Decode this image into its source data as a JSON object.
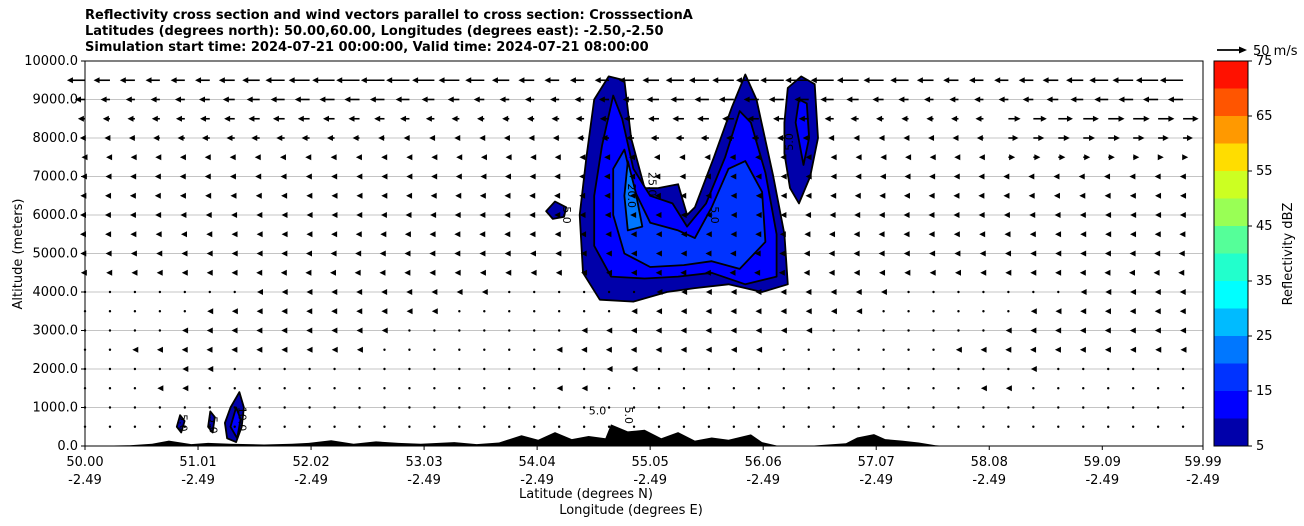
{
  "chart_data": {
    "type": "heatmap",
    "title_lines": [
      "Reflectivity cross section and wind vectors parallel to cross section: CrosssectionA",
      "Latitudes (degrees north): 50.00,60.00, Longitudes (degrees east): -2.50,-2.50",
      "Simulation start time: 2024-07-21 00:00:00, Valid time: 2024-07-21 08:00:00"
    ],
    "ylabel": "Altitude (meters)",
    "xlabel": "Latitude (degrees N)",
    "xlabel2": "Longitude (degrees E)",
    "xlim": [
      50.0,
      59.99
    ],
    "ylim": [
      0,
      10000
    ],
    "x_ticks": [
      {
        "lat": "50.00",
        "lon": "-2.49",
        "value": 50.0
      },
      {
        "lat": "51.01",
        "lon": "-2.49",
        "value": 51.01
      },
      {
        "lat": "52.02",
        "lon": "-2.49",
        "value": 52.02
      },
      {
        "lat": "53.03",
        "lon": "-2.49",
        "value": 53.03
      },
      {
        "lat": "54.04",
        "lon": "-2.49",
        "value": 54.04
      },
      {
        "lat": "55.05",
        "lon": "-2.49",
        "value": 55.05
      },
      {
        "lat": "56.06",
        "lon": "-2.49",
        "value": 56.06
      },
      {
        "lat": "57.07",
        "lon": "-2.49",
        "value": 57.07
      },
      {
        "lat": "58.08",
        "lon": "-2.49",
        "value": 58.08
      },
      {
        "lat": "59.09",
        "lon": "-2.49",
        "value": 59.09
      },
      {
        "lat": "59.99",
        "lon": "-2.49",
        "value": 59.99
      }
    ],
    "y_ticks": [
      {
        "label": "0.0",
        "value": 0
      },
      {
        "label": "1000.0",
        "value": 1000
      },
      {
        "label": "2000.0",
        "value": 2000
      },
      {
        "label": "3000.0",
        "value": 3000
      },
      {
        "label": "4000.0",
        "value": 4000
      },
      {
        "label": "5000.0",
        "value": 5000
      },
      {
        "label": "6000.0",
        "value": 6000
      },
      {
        "label": "7000.0",
        "value": 7000
      },
      {
        "label": "8000.0",
        "value": 8000
      },
      {
        "label": "9000.0",
        "value": 9000
      },
      {
        "label": "10000.0",
        "value": 10000
      }
    ],
    "grid": "horizontal",
    "quiver_key": {
      "label": "50 m/s",
      "speed": 50
    },
    "colorbar": {
      "label": "Reflectivity dBZ",
      "levels": [
        5,
        10,
        15,
        20,
        25,
        30,
        35,
        40,
        45,
        50,
        55,
        60,
        65,
        70,
        75
      ],
      "colors": [
        "#0000aa",
        "#0000ff",
        "#0033ff",
        "#0077ff",
        "#00bbff",
        "#00ffff",
        "#22ffcc",
        "#55ff99",
        "#99ff55",
        "#ccff22",
        "#ffdd00",
        "#ff9900",
        "#ff5500",
        "#ff1100",
        "#aa0000"
      ],
      "tick_labels": [
        {
          "label": "5",
          "value": 5
        },
        {
          "label": "15",
          "value": 15
        },
        {
          "label": "25",
          "value": 25
        },
        {
          "label": "35",
          "value": 35
        },
        {
          "label": "45",
          "value": 45
        },
        {
          "label": "55",
          "value": 55
        },
        {
          "label": "65",
          "value": 65
        },
        {
          "label": "75",
          "value": 75
        }
      ]
    },
    "terrain": [
      [
        50.0,
        0
      ],
      [
        50.4,
        20
      ],
      [
        50.6,
        60
      ],
      [
        50.75,
        140
      ],
      [
        50.95,
        50
      ],
      [
        51.1,
        80
      ],
      [
        51.3,
        60
      ],
      [
        51.6,
        40
      ],
      [
        51.85,
        60
      ],
      [
        52.0,
        80
      ],
      [
        52.2,
        150
      ],
      [
        52.4,
        60
      ],
      [
        52.6,
        120
      ],
      [
        52.8,
        80
      ],
      [
        53.0,
        60
      ],
      [
        53.3,
        100
      ],
      [
        53.5,
        50
      ],
      [
        53.7,
        90
      ],
      [
        53.9,
        280
      ],
      [
        54.05,
        160
      ],
      [
        54.2,
        360
      ],
      [
        54.35,
        180
      ],
      [
        54.5,
        260
      ],
      [
        54.65,
        200
      ],
      [
        54.7,
        560
      ],
      [
        54.85,
        380
      ],
      [
        55.0,
        420
      ],
      [
        55.15,
        200
      ],
      [
        55.3,
        360
      ],
      [
        55.45,
        140
      ],
      [
        55.6,
        220
      ],
      [
        55.75,
        160
      ],
      [
        55.95,
        300
      ],
      [
        56.05,
        100
      ],
      [
        56.2,
        0
      ],
      [
        56.5,
        10
      ],
      [
        56.8,
        70
      ],
      [
        56.9,
        220
      ],
      [
        57.05,
        310
      ],
      [
        57.15,
        180
      ],
      [
        57.3,
        140
      ],
      [
        57.45,
        90
      ],
      [
        57.6,
        20
      ],
      [
        57.7,
        0
      ],
      [
        59.99,
        0
      ]
    ],
    "reflectivity_cells": [
      {
        "name": "cell-a",
        "levels": [
          {
            "dbz": 5,
            "outline": [
              [
                54.6,
                3800
              ],
              [
                54.45,
                4500
              ],
              [
                54.42,
                6000
              ],
              [
                54.48,
                7500
              ],
              [
                54.55,
                9000
              ],
              [
                54.68,
                9600
              ],
              [
                54.82,
                9500
              ],
              [
                54.88,
                8000
              ],
              [
                55.0,
                6700
              ],
              [
                55.12,
                6700
              ],
              [
                55.3,
                6800
              ],
              [
                55.38,
                6000
              ],
              [
                55.45,
                6200
              ],
              [
                55.62,
                7500
              ],
              [
                55.78,
                8800
              ],
              [
                55.9,
                9650
              ],
              [
                56.0,
                9000
              ],
              [
                56.15,
                7000
              ],
              [
                56.25,
                5500
              ],
              [
                56.28,
                4200
              ],
              [
                56.05,
                4000
              ],
              [
                55.75,
                4200
              ],
              [
                55.45,
                4100
              ],
              [
                55.2,
                4000
              ],
              [
                54.9,
                3750
              ]
            ]
          },
          {
            "dbz": 10,
            "outline": [
              [
                54.7,
                4400
              ],
              [
                54.55,
                5200
              ],
              [
                54.55,
                6500
              ],
              [
                54.62,
                7800
              ],
              [
                54.72,
                9100
              ],
              [
                54.8,
                8500
              ],
              [
                54.9,
                7200
              ],
              [
                55.05,
                6500
              ],
              [
                55.25,
                6300
              ],
              [
                55.38,
                5700
              ],
              [
                55.55,
                6300
              ],
              [
                55.72,
                7500
              ],
              [
                55.85,
                8700
              ],
              [
                55.95,
                8400
              ],
              [
                56.08,
                7100
              ],
              [
                56.18,
                5500
              ],
              [
                56.18,
                4400
              ],
              [
                55.9,
                4200
              ],
              [
                55.6,
                4500
              ],
              [
                55.3,
                4400
              ],
              [
                55.0,
                4350
              ]
            ]
          },
          {
            "dbz": 15,
            "outline": [
              [
                54.82,
                5000
              ],
              [
                54.72,
                6000
              ],
              [
                54.72,
                7200
              ],
              [
                54.82,
                7700
              ],
              [
                54.9,
                6700
              ],
              [
                55.05,
                5800
              ],
              [
                55.3,
                5600
              ],
              [
                55.45,
                5400
              ],
              [
                55.6,
                6200
              ],
              [
                55.75,
                7200
              ],
              [
                55.9,
                7400
              ],
              [
                56.05,
                6600
              ],
              [
                56.08,
                5300
              ],
              [
                55.85,
                4600
              ],
              [
                55.6,
                4800
              ],
              [
                55.35,
                4700
              ],
              [
                55.05,
                4650
              ]
            ]
          },
          {
            "dbz": 20,
            "outline": [
              [
                54.85,
                5600
              ],
              [
                54.82,
                6500
              ],
              [
                54.85,
                7400
              ],
              [
                54.92,
                6600
              ],
              [
                54.98,
                5700
              ]
            ]
          }
        ]
      },
      {
        "name": "cell-b",
        "levels": [
          {
            "dbz": 5,
            "outline": [
              [
                56.25,
                8400
              ],
              [
                56.28,
                9300
              ],
              [
                56.4,
                9600
              ],
              [
                56.52,
                9400
              ],
              [
                56.55,
                8000
              ],
              [
                56.48,
                7000
              ],
              [
                56.38,
                6300
              ],
              [
                56.3,
                6700
              ],
              [
                56.25,
                7600
              ]
            ]
          },
          {
            "dbz": 10,
            "outline": [
              [
                56.35,
                8400
              ],
              [
                56.38,
                9000
              ],
              [
                56.45,
                8900
              ],
              [
                56.47,
                8000
              ],
              [
                56.42,
                7300
              ]
            ]
          }
        ]
      },
      {
        "name": "cell-c",
        "levels": [
          {
            "dbz": 5,
            "outline": [
              [
                54.12,
                6100
              ],
              [
                54.2,
                6350
              ],
              [
                54.3,
                6200
              ],
              [
                54.28,
                5950
              ],
              [
                54.18,
                5900
              ]
            ]
          }
        ]
      },
      {
        "name": "cell-d",
        "levels": [
          {
            "dbz": 5,
            "outline": [
              [
                51.25,
                600
              ],
              [
                51.3,
                1000
              ],
              [
                51.38,
                1400
              ],
              [
                51.42,
                1000
              ],
              [
                51.4,
                500
              ],
              [
                51.35,
                100
              ],
              [
                51.27,
                200
              ]
            ]
          },
          {
            "dbz": 10,
            "outline": [
              [
                51.3,
                500
              ],
              [
                51.35,
                1000
              ],
              [
                51.39,
                700
              ],
              [
                51.36,
                200
              ]
            ]
          }
        ]
      },
      {
        "name": "cell-e",
        "levels": [
          {
            "dbz": 5,
            "outline": [
              [
                51.1,
                500
              ],
              [
                51.12,
                900
              ],
              [
                51.16,
                750
              ],
              [
                51.14,
                350
              ]
            ]
          }
        ]
      },
      {
        "name": "cell-f",
        "levels": [
          {
            "dbz": 5,
            "outline": [
              [
                50.82,
                500
              ],
              [
                50.85,
                800
              ],
              [
                50.89,
                650
              ],
              [
                50.86,
                350
              ]
            ]
          }
        ]
      }
    ],
    "contour_labels": [
      {
        "text": "5.0",
        "x": 54.3,
        "y": 6000,
        "rotate": 90
      },
      {
        "text": "20.0",
        "x": 54.88,
        "y": 6500,
        "rotate": 90
      },
      {
        "text": "25.0",
        "x": 55.06,
        "y": 6800,
        "rotate": 90
      },
      {
        "text": "5.0",
        "x": 55.62,
        "y": 6000,
        "rotate": 90
      },
      {
        "text": "5.0",
        "x": 56.3,
        "y": 7900,
        "rotate": -90
      },
      {
        "text": "5.0",
        "x": 54.58,
        "y": 900,
        "rotate": 0
      },
      {
        "text": "5.0",
        "x": 54.85,
        "y": 800,
        "rotate": 90
      },
      {
        "text": "5.0",
        "x": 50.87,
        "y": 600,
        "rotate": 90
      },
      {
        "text": "5.0",
        "x": 51.14,
        "y": 550,
        "rotate": 90
      },
      {
        "text": "10.0",
        "x": 51.4,
        "y": 700,
        "rotate": 90
      }
    ],
    "wind": {
      "x_start": 50.0,
      "x_step": 0.223,
      "x_count": 46,
      "altitudes": [
        9500,
        9000,
        8500,
        8000,
        7500,
        7000,
        6500,
        6000,
        5500,
        5000,
        4500,
        4000,
        3500,
        3000,
        2500,
        2000,
        1500,
        1000,
        500
      ],
      "u_profile": [
        -14,
        -9,
        -7,
        -5,
        -3,
        -3,
        -3,
        -3,
        -3,
        -3,
        -3,
        -2,
        -2,
        -2,
        -2,
        -1.5,
        -1.5,
        -1,
        -1
      ]
    }
  }
}
